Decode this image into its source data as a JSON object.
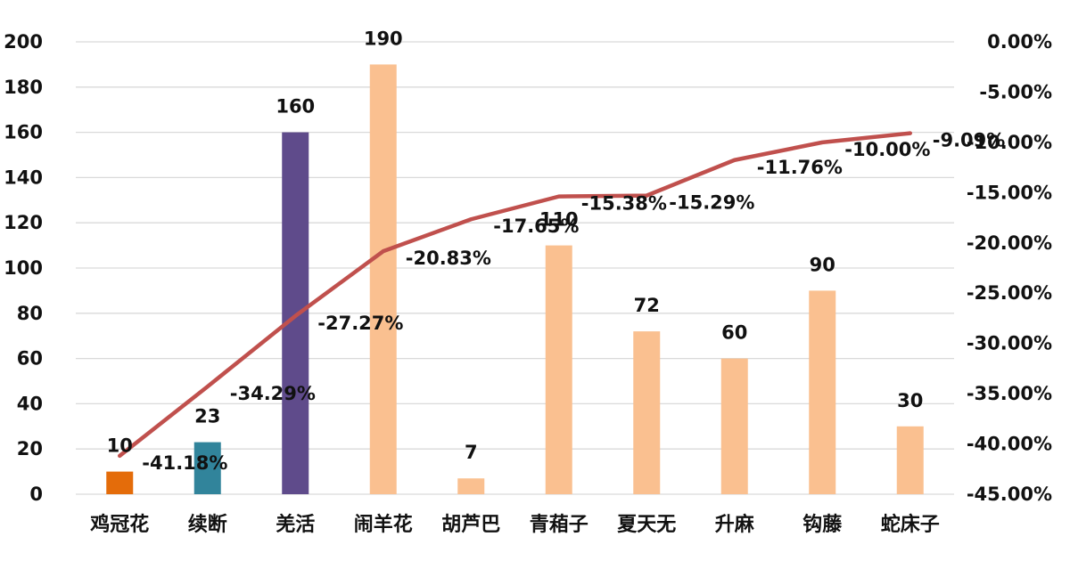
{
  "chart_data": {
    "type": "bar",
    "categories": [
      "鸡冠花",
      "续断",
      "羌活",
      "闹羊花",
      "胡芦巴",
      "青葙子",
      "夏天无",
      "升麻",
      "钩藤",
      "蛇床子"
    ],
    "series": [
      {
        "type": "bar",
        "axis": "left",
        "values": [
          10,
          23,
          160,
          190,
          7,
          110,
          72,
          60,
          90,
          30
        ],
        "data_labels": [
          "10",
          "23",
          "160",
          "190",
          "7",
          "110",
          "72",
          "60",
          "90",
          "30"
        ],
        "colors": [
          "#E46C0A",
          "#31849B",
          "#5F4B8B",
          "#FAC090",
          "#FAC090",
          "#FAC090",
          "#FAC090",
          "#FAC090",
          "#FAC090",
          "#FAC090"
        ]
      },
      {
        "type": "line",
        "axis": "right",
        "values": [
          -41.18,
          -34.29,
          -27.27,
          -20.83,
          -17.65,
          -15.38,
          -15.29,
          -11.76,
          -10.0,
          -9.09
        ],
        "data_labels": [
          "-41.18%",
          "-34.29%",
          "-27.27%",
          "-20.83%",
          "-17.65%",
          "-15.38%",
          "-15.29%",
          "-11.76%",
          "-10.00%",
          "-9.09%"
        ],
        "color": "#C0504D"
      }
    ],
    "left_axis": {
      "ylim": [
        0,
        200
      ],
      "ticks": [
        "0",
        "20",
        "40",
        "60",
        "80",
        "100",
        "120",
        "140",
        "160",
        "180",
        "200"
      ]
    },
    "right_axis": {
      "ylim": [
        -45,
        0
      ],
      "ticks": [
        "0.00%",
        "-5.00%",
        "-10.00%",
        "-15.00%",
        "-20.00%",
        "-25.00%",
        "-30.00%",
        "-35.00%",
        "-40.00%",
        "-45.00%"
      ]
    },
    "grid": true,
    "legend": "none"
  }
}
